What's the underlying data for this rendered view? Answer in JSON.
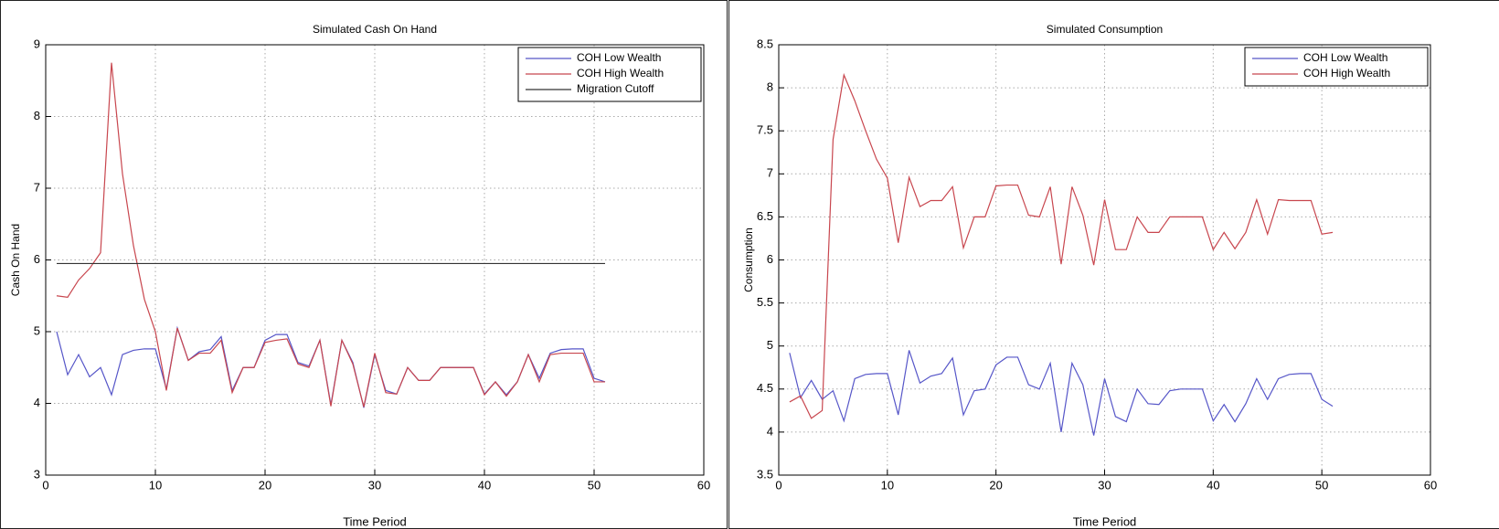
{
  "chart_data": [
    {
      "type": "line",
      "title": "Simulated Cash On Hand",
      "x_label": "Time Period",
      "y_label": "Cash On Hand",
      "x": [
        1,
        2,
        3,
        4,
        5,
        6,
        7,
        8,
        9,
        10,
        11,
        12,
        13,
        14,
        15,
        16,
        17,
        18,
        19,
        20,
        21,
        22,
        23,
        24,
        25,
        26,
        27,
        28,
        29,
        30,
        31,
        32,
        33,
        34,
        35,
        36,
        37,
        38,
        39,
        40,
        41,
        42,
        43,
        44,
        45,
        46,
        47,
        48,
        49,
        50,
        51
      ],
      "xlim": [
        0,
        60
      ],
      "xticks": [
        0,
        10,
        20,
        30,
        40,
        50,
        60
      ],
      "ylim": [
        3,
        9
      ],
      "yticks": [
        3,
        4,
        5,
        6,
        7,
        8,
        9
      ],
      "grid": true,
      "legend": "upper right",
      "series": [
        {
          "name": "COH Low Wealth",
          "color": "#5656c8",
          "values": [
            5.0,
            4.4,
            4.68,
            4.37,
            4.5,
            4.12,
            4.68,
            4.74,
            4.76,
            4.76,
            4.2,
            5.05,
            4.6,
            4.72,
            4.75,
            4.93,
            4.18,
            4.5,
            4.5,
            4.88,
            4.96,
            4.96,
            4.57,
            4.52,
            4.88,
            3.98,
            4.88,
            4.57,
            3.94,
            4.68,
            4.18,
            4.13,
            4.5,
            4.32,
            4.32,
            4.5,
            4.5,
            4.5,
            4.5,
            4.13,
            4.3,
            4.12,
            4.3,
            4.68,
            4.35,
            4.7,
            4.75,
            4.76,
            4.76,
            4.35,
            4.3
          ]
        },
        {
          "name": "COH High Wealth",
          "color": "#c8464e",
          "values": [
            5.5,
            5.48,
            5.72,
            5.88,
            6.1,
            8.75,
            7.2,
            6.2,
            5.45,
            5.0,
            4.18,
            5.05,
            4.6,
            4.7,
            4.7,
            4.88,
            4.15,
            4.5,
            4.5,
            4.85,
            4.88,
            4.9,
            4.55,
            4.5,
            4.88,
            3.96,
            4.88,
            4.55,
            3.95,
            4.7,
            4.15,
            4.13,
            4.5,
            4.32,
            4.32,
            4.5,
            4.5,
            4.5,
            4.5,
            4.12,
            4.3,
            4.1,
            4.3,
            4.68,
            4.3,
            4.68,
            4.7,
            4.7,
            4.7,
            4.3,
            4.3
          ]
        },
        {
          "name": "Migration Cutoff",
          "color": "#333333",
          "x": [
            1,
            51
          ],
          "values": [
            5.95,
            5.95
          ]
        }
      ]
    },
    {
      "type": "line",
      "title": "Simulated Consumption",
      "x_label": "Time Period",
      "y_label": "Consumption",
      "x": [
        1,
        2,
        3,
        4,
        5,
        6,
        7,
        8,
        9,
        10,
        11,
        12,
        13,
        14,
        15,
        16,
        17,
        18,
        19,
        20,
        21,
        22,
        23,
        24,
        25,
        26,
        27,
        28,
        29,
        30,
        31,
        32,
        33,
        34,
        35,
        36,
        37,
        38,
        39,
        40,
        41,
        42,
        43,
        44,
        45,
        46,
        47,
        48,
        49,
        50,
        51
      ],
      "xlim": [
        0,
        60
      ],
      "xticks": [
        0,
        10,
        20,
        30,
        40,
        50,
        60
      ],
      "ylim": [
        3.5,
        8.5
      ],
      "yticks": [
        3.5,
        4,
        4.5,
        5,
        5.5,
        6,
        6.5,
        7,
        7.5,
        8,
        8.5
      ],
      "grid": true,
      "legend": "upper right",
      "series": [
        {
          "name": "COH Low Wealth",
          "color": "#5656c8",
          "values": [
            4.92,
            4.4,
            4.6,
            4.38,
            4.48,
            4.13,
            4.62,
            4.67,
            4.68,
            4.68,
            4.2,
            4.95,
            4.57,
            4.65,
            4.68,
            4.86,
            4.2,
            4.48,
            4.5,
            4.78,
            4.87,
            4.87,
            4.55,
            4.5,
            4.8,
            4.0,
            4.8,
            4.55,
            3.96,
            4.62,
            4.18,
            4.12,
            4.5,
            4.33,
            4.32,
            4.48,
            4.5,
            4.5,
            4.5,
            4.13,
            4.32,
            4.12,
            4.33,
            4.62,
            4.38,
            4.62,
            4.67,
            4.68,
            4.68,
            4.38,
            4.3
          ]
        },
        {
          "name": "COH High Wealth",
          "color": "#c8464e",
          "values": [
            4.35,
            4.42,
            4.16,
            4.25,
            7.4,
            8.15,
            7.85,
            7.5,
            7.17,
            6.95,
            6.2,
            6.96,
            6.62,
            6.69,
            6.69,
            6.85,
            6.14,
            6.5,
            6.5,
            6.86,
            6.87,
            6.87,
            6.52,
            6.5,
            6.85,
            5.95,
            6.85,
            6.52,
            5.94,
            6.7,
            6.12,
            6.12,
            6.5,
            6.32,
            6.32,
            6.5,
            6.5,
            6.5,
            6.5,
            6.12,
            6.32,
            6.13,
            6.32,
            6.7,
            6.3,
            6.7,
            6.69,
            6.69,
            6.69,
            6.3,
            6.32
          ]
        }
      ]
    }
  ]
}
